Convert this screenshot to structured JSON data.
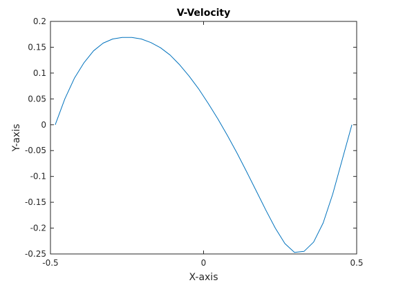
{
  "chart_data": {
    "type": "line",
    "title": "V-Velocity",
    "xlabel": "X-axis",
    "ylabel": "Y-axis",
    "xlim": [
      -0.5,
      0.5
    ],
    "ylim": [
      -0.25,
      0.2
    ],
    "xticks": [
      -0.5,
      0,
      0.5
    ],
    "xtick_labels": [
      "-0.5",
      "0",
      "0.5"
    ],
    "yticks": [
      0.2,
      0.15,
      0.1,
      0.05,
      0,
      -0.05,
      -0.1,
      -0.15,
      -0.2,
      -0.25
    ],
    "ytick_labels": [
      "0.2",
      "0.15",
      "0.1",
      "0.05",
      "0",
      "-0.05",
      "-0.1",
      "-0.15",
      "-0.2",
      "-0.25"
    ],
    "grid": false,
    "box": true,
    "series": [
      {
        "color": "#0072bd",
        "x": [
          -0.4844,
          -0.4531,
          -0.4219,
          -0.3906,
          -0.3594,
          -0.3281,
          -0.2969,
          -0.2656,
          -0.2344,
          -0.2031,
          -0.1719,
          -0.1406,
          -0.1094,
          -0.0781,
          -0.0469,
          -0.0156,
          0.0156,
          0.0469,
          0.0781,
          0.1094,
          0.1406,
          0.1719,
          0.2031,
          0.2344,
          0.2656,
          0.2969,
          0.3281,
          0.3594,
          0.3906,
          0.4219,
          0.4531,
          0.4844
        ],
        "y": [
          0.0,
          0.05,
          0.09,
          0.12,
          0.143,
          0.158,
          0.166,
          0.169,
          0.169,
          0.166,
          0.159,
          0.149,
          0.135,
          0.116,
          0.094,
          0.069,
          0.041,
          0.011,
          -0.021,
          -0.055,
          -0.091,
          -0.128,
          -0.165,
          -0.2,
          -0.23,
          -0.247,
          -0.245,
          -0.227,
          -0.19,
          -0.134,
          -0.067,
          0.0
        ]
      }
    ]
  }
}
